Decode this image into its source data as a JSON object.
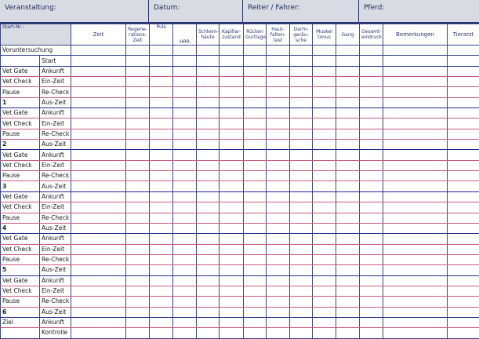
{
  "header": {
    "event": "Veranstaltung:",
    "date": "Datum:",
    "rider": "Reiter / Fahrer:",
    "horse": "Pferd:"
  },
  "columns": {
    "start_nr": "Start-Nr.:",
    "zeit": "Zeit",
    "regen": "Regene-rations-Zeit",
    "puls": "Puls",
    "hrr": "HRR",
    "schleim": "Schleim-häute",
    "kapillar": "Kapillar-zustand",
    "ruecken": "Rücken Gurtlage",
    "haut": "Haut-falten-test",
    "darm": "Darm-geräu-sche",
    "muskel": "Muskel tonus",
    "gang": "Gang",
    "gesamt": "Gesamt-eindruck",
    "bemerkungen": "Bemerkungen",
    "tierarzt": "Tierarzt"
  },
  "pre": {
    "label": "Voruntersuchung",
    "start": "Start"
  },
  "group_labels": [
    "Vet Gate",
    "Vet Check",
    "Pause"
  ],
  "group_sub": [
    "Ankunft",
    "Ein-Zeit",
    "Re-Check",
    "Aus-Zeit"
  ],
  "groups": [
    "1",
    "2",
    "3",
    "4",
    "5",
    "6"
  ],
  "finish": {
    "label": "Ziel",
    "sub": [
      "Ankunft",
      "Kontrolle"
    ]
  }
}
